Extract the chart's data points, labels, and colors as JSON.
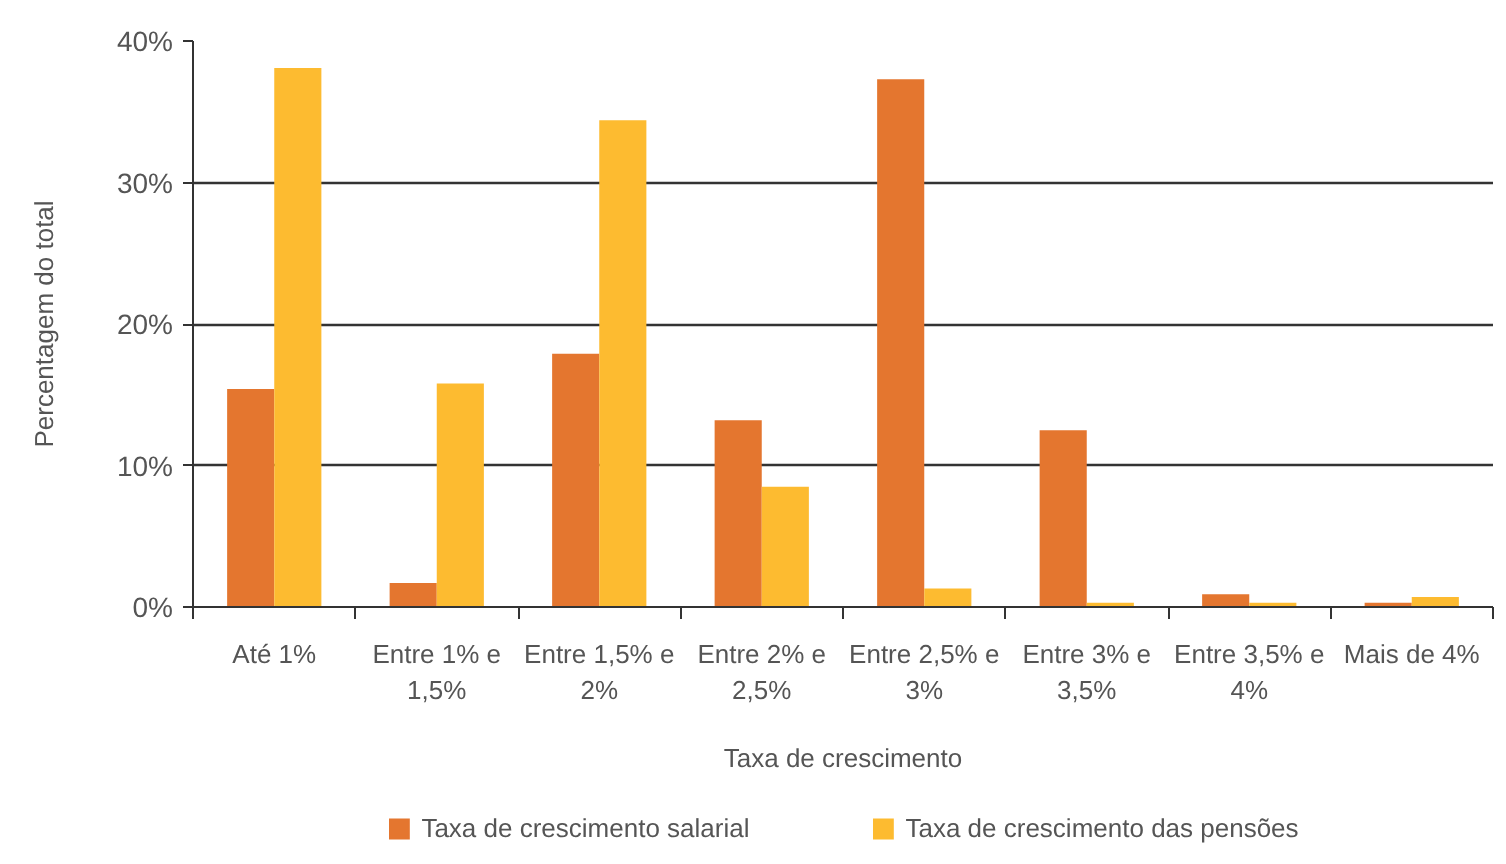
{
  "chart_data": {
    "type": "bar",
    "xlabel": "Taxa de crescimento",
    "ylabel": "Percentagem do total",
    "categories": [
      "Até 1%",
      "Entre 1% e 1,5%",
      "Entre 1,5% e 2%",
      "Entre 2% e 2,5%",
      "Entre 2,5% e 3%",
      "Entre 3% e 3,5%",
      "Entre 3,5% e 4%",
      "Mais de 4%"
    ],
    "series": [
      {
        "name": "Taxa de crescimento salarial",
        "color": "#e4762f",
        "values": [
          15.4,
          1.7,
          17.9,
          13.2,
          37.3,
          12.5,
          0.9,
          0.3
        ]
      },
      {
        "name": "Taxa de crescimento das pensões",
        "color": "#fdbb30",
        "values": [
          38.1,
          15.8,
          34.4,
          8.5,
          1.3,
          0.3,
          0.3,
          0.7
        ]
      }
    ],
    "ylim": [
      0,
      40
    ],
    "yticks": [
      {
        "value": 0,
        "label": "0%"
      },
      {
        "value": 10,
        "label": "10%"
      },
      {
        "value": 20,
        "label": "20%"
      },
      {
        "value": 30,
        "label": "30%"
      },
      {
        "value": 40,
        "label": "40%"
      }
    ],
    "grid": "y",
    "legend": "bottom"
  }
}
